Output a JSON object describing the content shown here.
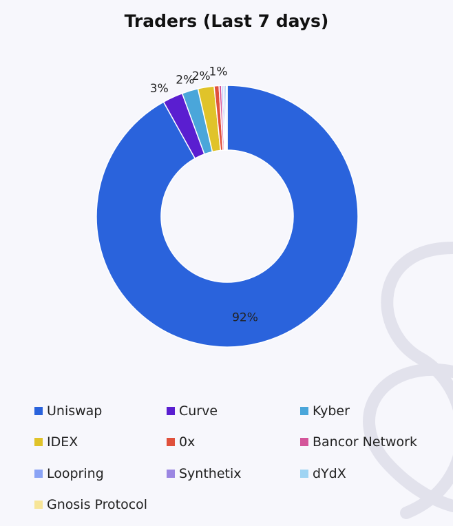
{
  "chart_data": {
    "type": "pie",
    "title": "Traders (Last 7 days)",
    "donut": true,
    "legend_position": "bottom",
    "categories": [
      "Uniswap",
      "Curve",
      "Kyber",
      "IDEX",
      "0x",
      "Bancor Network",
      "Loopring",
      "Synthetix",
      "dYdX",
      "Gnosis Protocol"
    ],
    "values": [
      92.0,
      2.5,
      2.0,
      2.0,
      0.6,
      0.3,
      0.2,
      0.2,
      0.2,
      0.1
    ],
    "data_labels": [
      "92%",
      "3%",
      "2%",
      "2%",
      "1%",
      "",
      "",
      "",
      "",
      ""
    ],
    "colors": [
      "#2a63dc",
      "#5a1ed0",
      "#4aa6da",
      "#e0c32a",
      "#e0513c",
      "#d4559a",
      "#8aa3f5",
      "#9b86e2",
      "#9fd4f3",
      "#f7e598"
    ]
  }
}
